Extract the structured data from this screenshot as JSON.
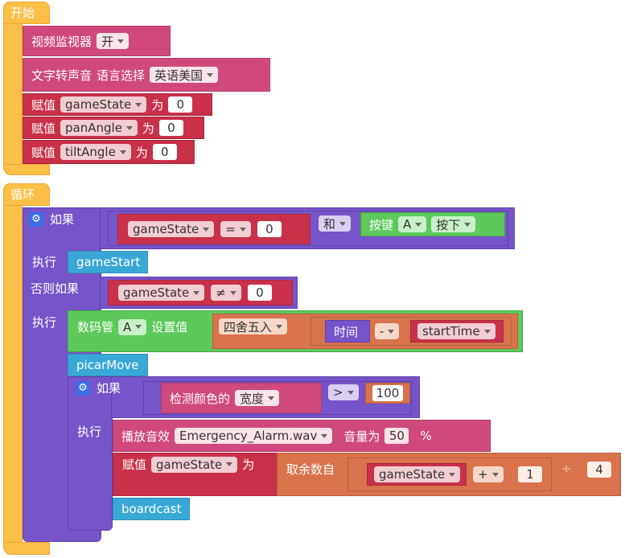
{
  "setup": {
    "hat_label": "开始",
    "video_monitor": {
      "label": "视频监视器",
      "value": "开"
    },
    "tts": {
      "label": "文字转声音",
      "lang_label": "语言选择",
      "lang_value": "英语美国"
    },
    "assign_label": "赋值",
    "as_label": "为",
    "assignments": [
      {
        "var": "gameState",
        "value": "0"
      },
      {
        "var": "panAngle",
        "value": "0"
      },
      {
        "var": "tiltAngle",
        "value": "0"
      }
    ]
  },
  "loop": {
    "hat_label": "循环",
    "if1": {
      "if_label": "如果",
      "var": "gameState",
      "op": "=",
      "value": "0",
      "and_label": "和",
      "button_label": "按键",
      "button_value": "A",
      "button_state": "按下",
      "then_label": "执行",
      "then_call": "gameStart"
    },
    "elif": {
      "label": "否则如果",
      "var": "gameState",
      "op": "≠",
      "value": "0",
      "then_label": "执行",
      "seg": {
        "label": "数码管",
        "port": "A",
        "set_label": "设置值",
        "round": "四舍五入",
        "time_label": "时间",
        "op": "-",
        "var": "startTime"
      },
      "call_move": "picarMove",
      "inner_if": {
        "if_label": "如果",
        "detect_label": "检测颜色的",
        "detect_value": "宽度",
        "op": ">",
        "value": "100",
        "then_label": "执行",
        "play": {
          "label": "播放音效",
          "file": "Emergency_Alarm.wav",
          "vol_label": "音量为",
          "vol": "50",
          "pct": "%"
        },
        "assign": {
          "label": "赋值",
          "var": "gameState",
          "as_label": "为",
          "mod_label": "取余数自",
          "var2": "gameState",
          "op": "+",
          "value": "1",
          "div": "÷",
          "divisor": "4"
        },
        "call_broadcast": "boardcast"
      }
    }
  }
}
